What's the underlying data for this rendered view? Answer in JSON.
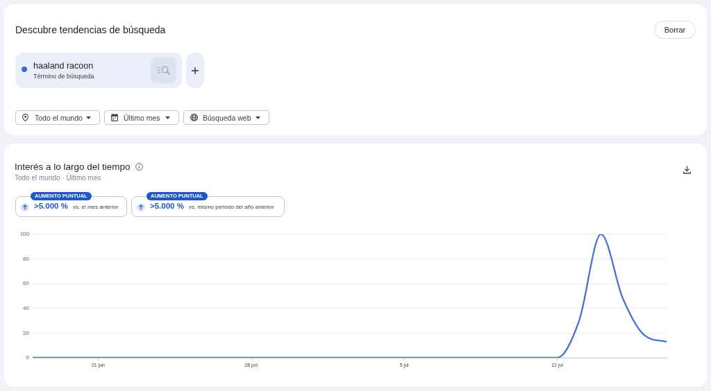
{
  "chart_data": [
    {
      "type": "other",
      "title": "Descubre tendencias de búsqueda",
      "annotations": [
        "Borrar",
        "haaland racoon",
        "Término de búsqueda",
        "Todo el mundo",
        "Último mes",
        "Búsqueda web"
      ]
    },
    {
      "type": "line",
      "title": "Interés a lo largo del tiempo",
      "subtitle": "Todo el mundo · Último mes",
      "annotations": [
        "AUMENTO PUNTUAL",
        ">5.000 %",
        "vs. el mes anterior",
        "AUMENTO PUNTUAL",
        ">5.000 %",
        "vs. mismo periodo del año anterior"
      ],
      "x": [
        "--06-18",
        "--06-19",
        "--06-20",
        "--06-21",
        "--06-22",
        "--06-23",
        "--06-24",
        "--06-25",
        "--06-26",
        "--06-27",
        "--06-28",
        "--06-29",
        "--06-30",
        "--07-01",
        "--07-02",
        "--07-03",
        "--07-04",
        "--07-05",
        "--07-06",
        "--07-07",
        "--07-08",
        "--07-09",
        "--07-10",
        "--07-11",
        "--07-12",
        "--07-13",
        "--07-14",
        "--07-15",
        "--07-16",
        "--07-17"
      ],
      "series": [
        {
          "color": "#4a72d6",
          "values": [
            0,
            0,
            0,
            0,
            0,
            0,
            0,
            0,
            0,
            0,
            0,
            0,
            0,
            0,
            0,
            0,
            0,
            0,
            0,
            0,
            0,
            0,
            0,
            0,
            0,
            30,
            100,
            48,
            18,
            13
          ]
        }
      ],
      "xlim": [
        "--06-18",
        "--07-17"
      ],
      "xticks": [
        {
          "value": "--06-21",
          "label": "21 jun"
        },
        {
          "value": "--06-28",
          "label": "28 jun"
        },
        {
          "value": "--07-05",
          "label": "5 jul"
        },
        {
          "value": "--07-12",
          "label": "12 jul"
        }
      ],
      "ylim": [
        0,
        100
      ],
      "yticks": [
        0,
        20,
        40,
        60,
        80,
        100
      ],
      "grid": "y",
      "marker": "none",
      "line_style": "solid"
    }
  ]
}
